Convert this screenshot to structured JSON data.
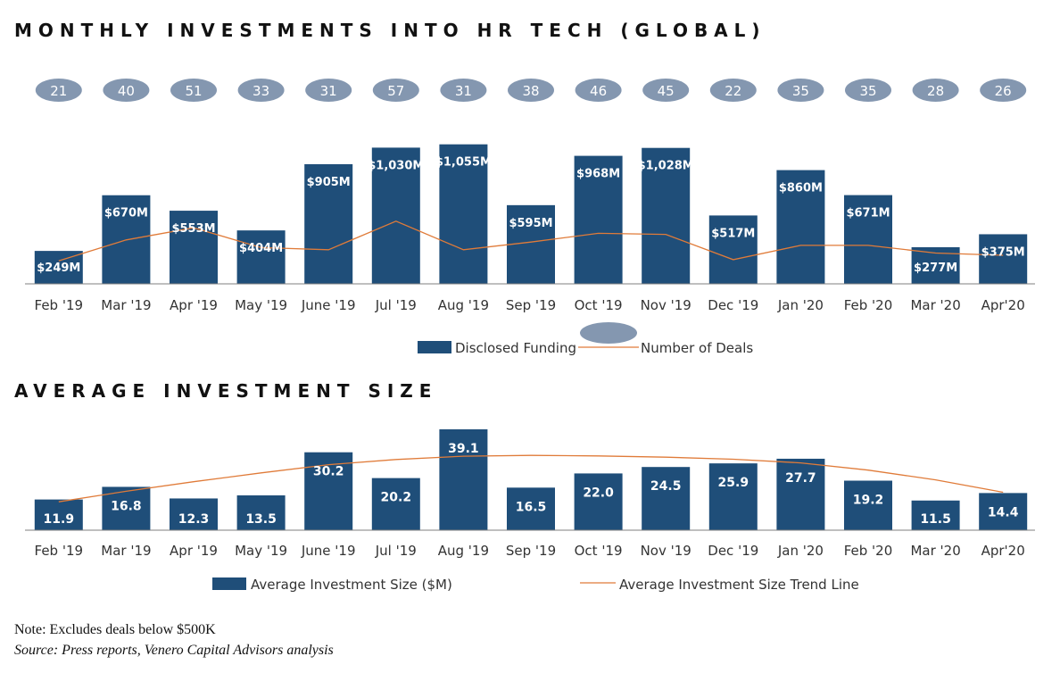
{
  "colors": {
    "bar": "#1f4e79",
    "line": "#e07b39",
    "bubble": "#8497b0",
    "axis": "#7f7f7f",
    "text": "#333333"
  },
  "note": "Note: Excludes deals below $500K",
  "source": "Source: Press reports, Venero Capital Advisors analysis",
  "chart_data": [
    {
      "type": "bar",
      "title": "MONTHLY INVESTMENTS INTO HR TECH (GLOBAL)",
      "categories": [
        "Feb '19",
        "Mar '19",
        "Apr '19",
        "May '19",
        "June '19",
        "Jul '19",
        "Aug '19",
        "Sep '19",
        "Oct '19",
        "Nov '19",
        "Dec '19",
        "Jan '20",
        "Feb '20",
        "Mar '20",
        "Apr'20"
      ],
      "series": [
        {
          "name": "Disclosed Funding",
          "type": "bar",
          "values": [
            249,
            670,
            553,
            404,
            905,
            1030,
            1055,
            595,
            968,
            1028,
            517,
            860,
            671,
            277,
            375
          ],
          "labels": [
            "$249M",
            "$670M",
            "$553M",
            "$404M",
            "$905M",
            "$1,030M",
            "$1,055M",
            "$595M",
            "$968M",
            "$1,028M",
            "$517M",
            "$860M",
            "$671M",
            "$277M",
            "$375M"
          ]
        },
        {
          "name": "Number of Deals",
          "type": "line",
          "values": [
            21,
            40,
            51,
            33,
            31,
            57,
            31,
            38,
            46,
            45,
            22,
            35,
            35,
            28,
            26
          ]
        }
      ],
      "ylim": [
        0,
        1080
      ],
      "grid": false,
      "legend": "bottom-center"
    },
    {
      "type": "bar",
      "title": "AVERAGE INVESTMENT SIZE",
      "categories": [
        "Feb '19",
        "Mar '19",
        "Apr '19",
        "May '19",
        "June '19",
        "Jul '19",
        "Aug '19",
        "Sep '19",
        "Oct '19",
        "Nov '19",
        "Dec '19",
        "Jan '20",
        "Feb '20",
        "Mar '20",
        "Apr'20"
      ],
      "series": [
        {
          "name": "Average Investment Size ($M)",
          "type": "bar",
          "values": [
            11.9,
            16.8,
            12.3,
            13.5,
            30.2,
            20.2,
            39.1,
            16.5,
            22.0,
            24.5,
            25.9,
            27.7,
            19.2,
            11.5,
            14.4
          ],
          "labels": [
            "11.9",
            "16.8",
            "12.3",
            "13.5",
            "30.2",
            "20.2",
            "39.1",
            "16.5",
            "22.0",
            "24.5",
            "25.9",
            "27.7",
            "19.2",
            "11.5",
            "14.4"
          ]
        },
        {
          "name": "Average Investment Size Trend Line",
          "type": "line",
          "values": [
            11.0,
            15.1,
            18.8,
            22.2,
            25.4,
            27.4,
            28.7,
            29.0,
            28.8,
            28.3,
            27.5,
            26.1,
            23.3,
            19.5,
            14.7
          ]
        }
      ],
      "ylim": [
        0,
        40
      ],
      "grid": false,
      "legend": "bottom"
    }
  ]
}
